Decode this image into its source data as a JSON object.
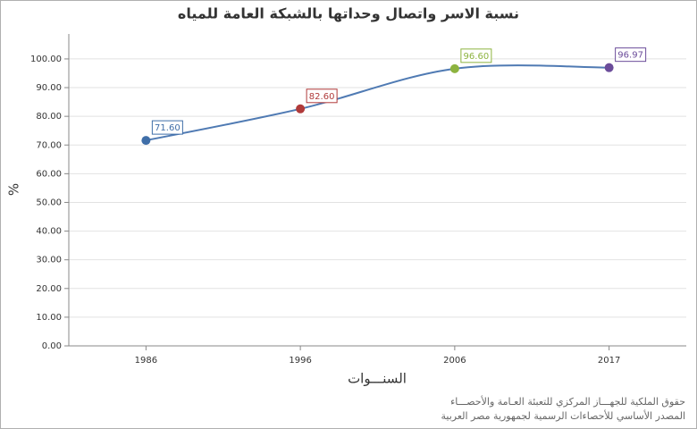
{
  "chart_data": {
    "type": "line",
    "title": "نسبة الاسر واتصال وحداتها بالشبكة العامة للمياه",
    "x_label": "السنـــوات",
    "y_label": "%",
    "categories": [
      "1986",
      "1996",
      "2006",
      "2017"
    ],
    "series": [
      {
        "color": "#4f7ab3",
        "values": [
          71.6,
          82.6,
          96.6,
          96.97
        ],
        "value_labels": [
          "71.60",
          "82.60",
          "96.60",
          "96.97"
        ],
        "point_colors": [
          "#3f6ea8",
          "#b03a3a",
          "#8db33f",
          "#6b4c9a"
        ]
      }
    ],
    "ylim": [
      0,
      108.7
    ],
    "yticks": [
      {
        "value": 0,
        "label": "0.00"
      },
      {
        "value": 10,
        "label": "10.00"
      },
      {
        "value": 20,
        "label": "20.00"
      },
      {
        "value": 30,
        "label": "30.00"
      },
      {
        "value": 40,
        "label": "40.00"
      },
      {
        "value": 50,
        "label": "50.00"
      },
      {
        "value": 60,
        "label": "60.00"
      },
      {
        "value": 70,
        "label": "70.00"
      },
      {
        "value": 80,
        "label": "80.00"
      },
      {
        "value": 90,
        "label": "90.00"
      },
      {
        "value": 100,
        "label": "100.00"
      }
    ],
    "grid": true,
    "footer": [
      "حقوق الملكية للجهـــاز المركزي للتعبئة العـامة والأحصـــاء",
      "المصدر الأساسي للأحصاءات الرسمية لجمهورية مصر العربية"
    ]
  }
}
